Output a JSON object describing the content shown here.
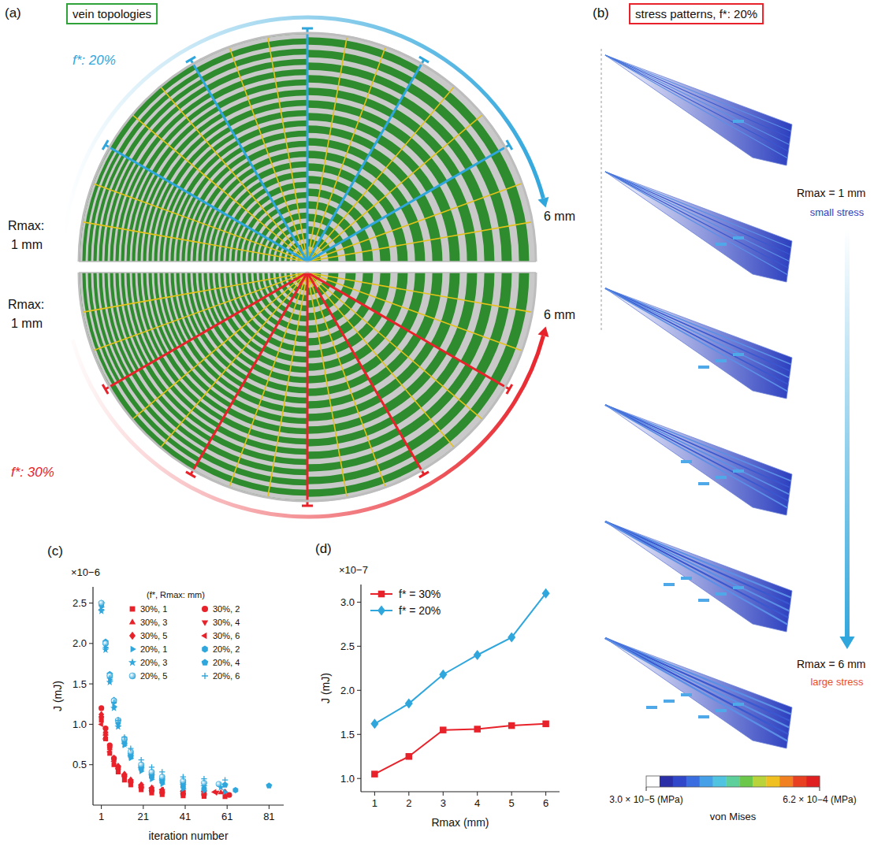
{
  "figure": {
    "a": {
      "panel": "(a)",
      "title": "vein topologies",
      "top": {
        "f_label": "f*: 20%",
        "start_label": [
          "Rmax:",
          "1 mm"
        ],
        "end_label": "6 mm",
        "color": "#2fa6dc",
        "sectors": [
          1,
          2,
          3,
          4,
          5,
          6
        ]
      },
      "bottom": {
        "f_label": "f*: 30%",
        "start_label": [
          "Rmax:",
          "1 mm"
        ],
        "end_label": "6 mm",
        "color": "#e8222a",
        "sectors": [
          1,
          2,
          3,
          4,
          5,
          6
        ]
      }
    },
    "b": {
      "panel": "(b)",
      "title": "stress patterns, f*: 20%",
      "rmax": [
        1,
        2,
        3,
        4,
        5,
        6
      ],
      "top_label": "Rmax = 1 mm",
      "top_note": "small stress",
      "bottom_label": "Rmax = 6 mm",
      "bottom_note": "large stress",
      "colorbar": {
        "range": [
          3e-05,
          0.00062
        ],
        "ticks": [
          {
            "value": 3e-05,
            "label": "3.0 × 10−5 (MPa)"
          },
          {
            "value": 0.00062,
            "label": "6.2 × 10−4 (MPa)"
          }
        ],
        "label": "von Mises",
        "colors": [
          "#ffffff",
          "#2a2fa8",
          "#2f47c8",
          "#3a6ee0",
          "#45a0e8",
          "#4fc3e0",
          "#5ccf9a",
          "#6cc84a",
          "#b8d43a",
          "#f0c020",
          "#f08020",
          "#e84020",
          "#e02020"
        ]
      }
    }
  },
  "chart_data": [
    {
      "type": "scatter",
      "panel": "(c)",
      "annotations": [
        "×10−6"
      ],
      "x_label": "iteration number",
      "y_label": "J (mJ)",
      "legend_title": "(f*, Rmax: mm)",
      "legend": "top-right",
      "xlim": [
        -3,
        88
      ],
      "xticks": [
        1,
        21,
        41,
        61,
        81
      ],
      "ylim": [
        0,
        2.7
      ],
      "yticks": [
        0.5,
        {
          "value": 1,
          "label": "1.0"
        },
        1.5,
        {
          "value": 2,
          "label": "2.0"
        },
        2.5
      ],
      "series": [
        {
          "name": "30%, 1",
          "color": "#e8222a",
          "marker": "square",
          "x": [
            1,
            3,
            5,
            7,
            9,
            12,
            15,
            20,
            25,
            30,
            40,
            50,
            60
          ],
          "values": [
            1.05,
            0.82,
            0.64,
            0.5,
            0.41,
            0.31,
            0.25,
            0.19,
            0.15,
            0.13,
            0.115,
            0.108,
            0.105
          ]
        },
        {
          "name": "30%, 2",
          "color": "#e8222a",
          "marker": "circle",
          "x": [
            1,
            3,
            5,
            7,
            9,
            12,
            15,
            20,
            25,
            30,
            40,
            50,
            62
          ],
          "values": [
            1.2,
            0.95,
            0.74,
            0.58,
            0.47,
            0.36,
            0.29,
            0.22,
            0.18,
            0.155,
            0.138,
            0.13,
            0.125
          ]
        },
        {
          "name": "30%, 3",
          "color": "#e8222a",
          "marker": "triangle-up",
          "x": [
            1,
            3,
            5,
            7,
            9,
            12,
            15,
            20,
            25,
            30,
            40,
            50,
            58
          ],
          "values": [
            1.1,
            0.88,
            0.7,
            0.56,
            0.46,
            0.37,
            0.3,
            0.24,
            0.2,
            0.18,
            0.165,
            0.158,
            0.155
          ]
        },
        {
          "name": "30%, 4",
          "color": "#e8222a",
          "marker": "triangle-down",
          "x": [
            1,
            3,
            5,
            7,
            9,
            12,
            15,
            20,
            25,
            30,
            40,
            50,
            56
          ],
          "values": [
            1.08,
            0.86,
            0.69,
            0.55,
            0.46,
            0.37,
            0.3,
            0.24,
            0.2,
            0.18,
            0.166,
            0.16,
            0.156
          ]
        },
        {
          "name": "30%, 5",
          "color": "#e8222a",
          "marker": "diamond",
          "x": [
            1,
            3,
            5,
            7,
            9,
            12,
            15,
            20,
            25,
            30,
            40,
            50,
            60
          ],
          "values": [
            1.12,
            0.9,
            0.72,
            0.58,
            0.48,
            0.38,
            0.31,
            0.25,
            0.21,
            0.185,
            0.17,
            0.163,
            0.16
          ]
        },
        {
          "name": "30%, 6",
          "color": "#e8222a",
          "marker": "triangle-left",
          "x": [
            1,
            3,
            5,
            7,
            9,
            12,
            15,
            20,
            25,
            30,
            40,
            50,
            55
          ],
          "values": [
            1.0,
            0.82,
            0.66,
            0.54,
            0.45,
            0.37,
            0.3,
            0.245,
            0.21,
            0.19,
            0.172,
            0.165,
            0.162
          ]
        },
        {
          "name": "20%, 1",
          "color": "#2fa6dc",
          "marker": "triangle-right",
          "x": [
            1,
            3,
            5,
            7,
            9,
            12,
            15,
            20,
            25,
            30,
            40,
            50,
            60
          ],
          "values": [
            2.45,
            1.95,
            1.55,
            1.22,
            0.98,
            0.74,
            0.58,
            0.42,
            0.32,
            0.26,
            0.2,
            0.175,
            0.162
          ]
        },
        {
          "name": "20%, 2",
          "color": "#2fa6dc",
          "marker": "hexagon",
          "x": [
            1,
            3,
            5,
            7,
            9,
            12,
            15,
            20,
            25,
            30,
            40,
            50,
            65
          ],
          "values": [
            2.48,
            2.0,
            1.6,
            1.28,
            1.02,
            0.78,
            0.61,
            0.45,
            0.35,
            0.29,
            0.23,
            0.2,
            0.185
          ]
        },
        {
          "name": "20%, 3",
          "color": "#2fa6dc",
          "marker": "star",
          "x": [
            1,
            3,
            5,
            7,
            9,
            12,
            15,
            20,
            25,
            30,
            40,
            50,
            58
          ],
          "values": [
            2.4,
            1.92,
            1.52,
            1.2,
            0.97,
            0.75,
            0.6,
            0.45,
            0.36,
            0.3,
            0.25,
            0.23,
            0.218
          ]
        },
        {
          "name": "20%, 4",
          "color": "#2fa6dc",
          "marker": "pentagon",
          "x": [
            1,
            3,
            5,
            7,
            9,
            12,
            15,
            20,
            25,
            30,
            40,
            60,
            81
          ],
          "values": [
            2.5,
            2.02,
            1.62,
            1.3,
            1.05,
            0.8,
            0.63,
            0.47,
            0.38,
            0.32,
            0.27,
            0.25,
            0.24
          ]
        },
        {
          "name": "20%, 5",
          "color": "#2fa6dc",
          "marker": "sphere",
          "x": [
            1,
            3,
            5,
            7,
            9,
            12,
            15,
            20,
            25,
            30,
            40,
            50,
            57
          ],
          "values": [
            2.5,
            2.0,
            1.6,
            1.29,
            1.05,
            0.82,
            0.66,
            0.5,
            0.41,
            0.35,
            0.3,
            0.275,
            0.26
          ]
        },
        {
          "name": "20%, 6",
          "color": "#2fa6dc",
          "marker": "plus",
          "x": [
            1,
            3,
            5,
            7,
            9,
            12,
            15,
            20,
            25,
            30,
            40,
            50,
            60
          ],
          "values": [
            2.42,
            1.95,
            1.57,
            1.27,
            1.05,
            0.84,
            0.7,
            0.56,
            0.47,
            0.41,
            0.35,
            0.325,
            0.31
          ]
        }
      ]
    },
    {
      "type": "line",
      "panel": "(d)",
      "annotations": [
        "×10−7"
      ],
      "x_label": "Rmax (mm)",
      "y_label": "J (mJ)",
      "legend": "top-left",
      "x": [
        1,
        2,
        3,
        4,
        5,
        6
      ],
      "xlim": [
        0.6,
        6.4
      ],
      "xticks": [
        1,
        2,
        3,
        4,
        5,
        6
      ],
      "ylim": [
        0.85,
        3.2
      ],
      "yticks": [
        {
          "value": 1,
          "label": "1.0"
        },
        1.5,
        {
          "value": 2,
          "label": "2.0"
        },
        2.5,
        {
          "value": 3,
          "label": "3.0"
        }
      ],
      "series": [
        {
          "name": "f* = 30%",
          "color": "#e8222a",
          "marker": "square",
          "values": [
            1.05,
            1.25,
            1.55,
            1.56,
            1.6,
            1.62
          ]
        },
        {
          "name": "f* = 20%",
          "color": "#2fa6dc",
          "marker": "diamond",
          "values": [
            1.62,
            1.85,
            2.18,
            2.4,
            2.6,
            3.1
          ]
        }
      ]
    }
  ]
}
